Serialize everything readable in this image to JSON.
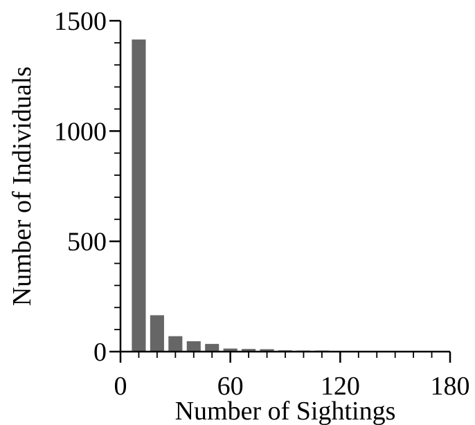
{
  "chart_data": {
    "type": "bar",
    "title": "",
    "xlabel": "Number of Sightings",
    "ylabel": "Number of Individuals",
    "xlim": [
      0,
      180
    ],
    "ylim": [
      0,
      1500
    ],
    "x_ticks": [
      0,
      60,
      120,
      180
    ],
    "x_tick_labels": [
      "0",
      "60",
      "120",
      "180"
    ],
    "y_ticks": [
      0,
      500,
      1000,
      1500
    ],
    "y_tick_labels": [
      "0",
      "500",
      "1000",
      "1500"
    ],
    "bin_width": 10,
    "bars": [
      {
        "x": 10,
        "value": 1415
      },
      {
        "x": 20,
        "value": 165
      },
      {
        "x": 30,
        "value": 70
      },
      {
        "x": 40,
        "value": 47
      },
      {
        "x": 50,
        "value": 35
      },
      {
        "x": 60,
        "value": 14
      },
      {
        "x": 70,
        "value": 12
      },
      {
        "x": 80,
        "value": 11
      },
      {
        "x": 90,
        "value": 6
      },
      {
        "x": 100,
        "value": 5
      },
      {
        "x": 110,
        "value": 5
      },
      {
        "x": 120,
        "value": 3
      },
      {
        "x": 130,
        "value": 2
      },
      {
        "x": 140,
        "value": 2
      },
      {
        "x": 150,
        "value": 2
      },
      {
        "x": 160,
        "value": 3
      },
      {
        "x": 170,
        "value": 1
      }
    ],
    "bar_color": "#666666",
    "grid": false,
    "legend": "none"
  }
}
